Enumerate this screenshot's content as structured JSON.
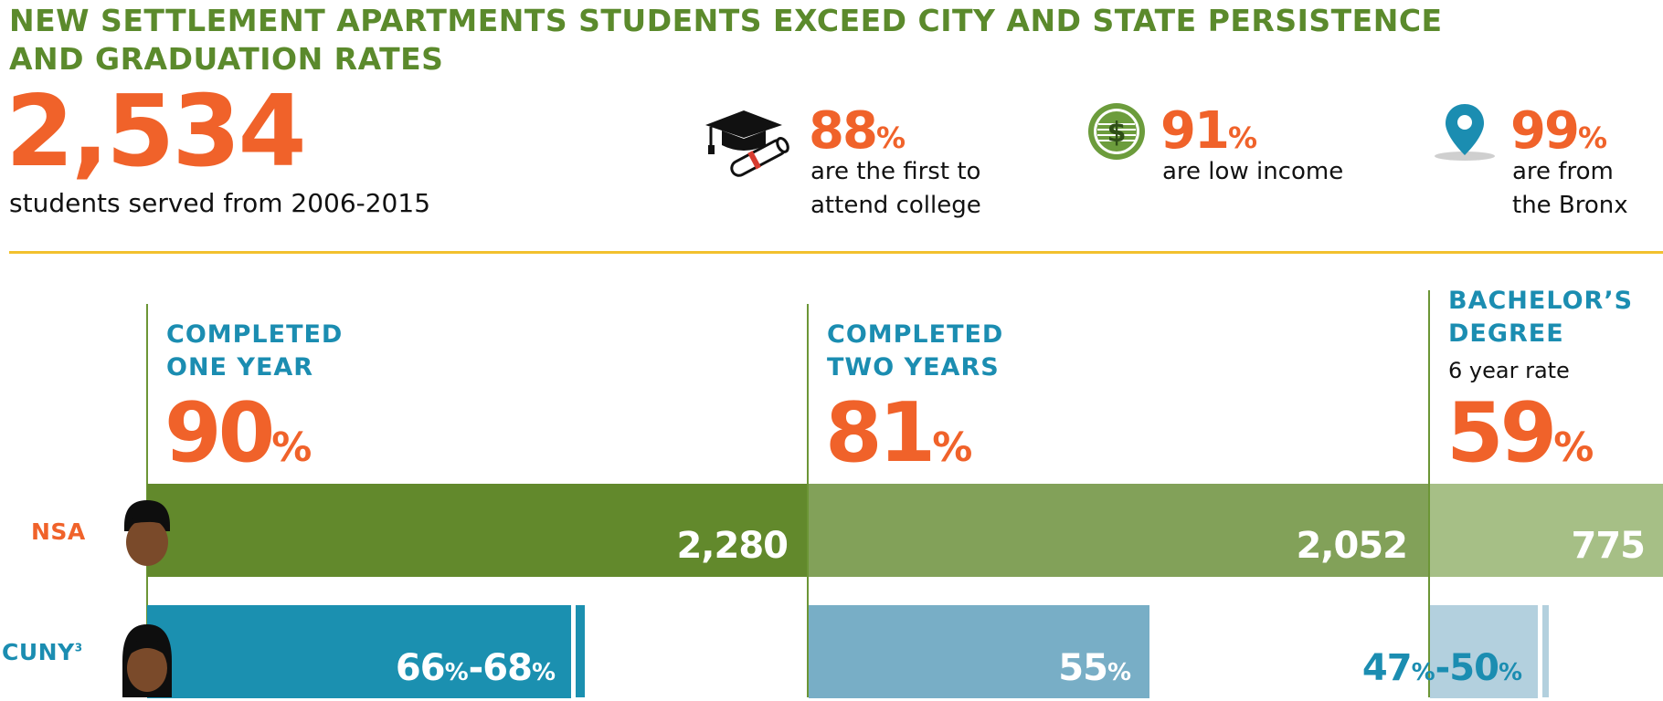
{
  "title": "NEW SETTLEMENT APARTMENTS STUDENTS EXCEED CITY AND STATE PERSISTENCE AND GRADUATION RATES",
  "hero": {
    "number": "2,534",
    "caption": "students served from 2006-2015"
  },
  "stats": [
    {
      "icon": "graduation-cap-diploma-icon",
      "number": "88",
      "unit": "%",
      "line1": "are the first to",
      "line2": "attend college"
    },
    {
      "icon": "dollar-coin-icon",
      "number": "91",
      "unit": "%",
      "line1": "are low income",
      "line2": ""
    },
    {
      "icon": "location-pin-icon",
      "number": "99",
      "unit": "%",
      "line1": "are from",
      "line2": "the Bronx"
    }
  ],
  "columns": [
    {
      "head1": "COMPLETED",
      "head2": "ONE YEAR",
      "sub": "",
      "pct": "90",
      "unit": "%"
    },
    {
      "head1": "COMPLETED",
      "head2": "TWO YEARS",
      "sub": "",
      "pct": "81",
      "unit": "%"
    },
    {
      "head1": "BACHELOR’S",
      "head2": "DEGREE",
      "sub": "6 year rate",
      "pct": "59",
      "unit": "%"
    }
  ],
  "rows": {
    "nsa": {
      "label": "NSA",
      "values": [
        "2,280",
        "2,052",
        "775"
      ]
    },
    "cuny": {
      "label": "CUNY",
      "footnote": "3",
      "values": [
        {
          "a": "66",
          "b": "68"
        },
        {
          "a": "55"
        },
        {
          "a": "47",
          "b": "50"
        }
      ],
      "percent_sign": "%",
      "dash": "-"
    }
  },
  "colors": {
    "title_green": "#5b8a2c",
    "accent_orange": "#f0622a",
    "heading_blue": "#1b8db1",
    "rule_yellow": "#f2c12e",
    "nsa_bar_1": "#62892c",
    "nsa_bar_2": "#82a159",
    "nsa_bar_3": "#a6bf86",
    "cuny_bar_1": "#1b90b0",
    "cuny_bar_2": "#78aec6",
    "cuny_bar_3": "#b3d0de"
  }
}
